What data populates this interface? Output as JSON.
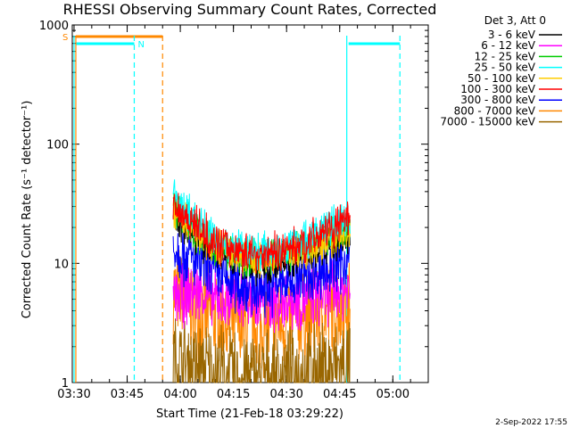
{
  "chart_data": {
    "type": "line",
    "title": "RHESSI Observing Summary Count Rates, Corrected",
    "xlabel": "Start Time (21-Feb-18 03:29:22)",
    "ylabel": "Corrected Count Rate (s⁻¹ detector⁻¹)",
    "y_scale": "log",
    "ylim": [
      1,
      1000
    ],
    "xlim": [
      "03:30",
      "05:10"
    ],
    "x_ticks": [
      "03:30",
      "03:45",
      "04:00",
      "04:15",
      "04:30",
      "04:45",
      "05:00"
    ],
    "y_ticks": [
      "1",
      "10",
      "100",
      "1000"
    ],
    "legend_title": "Det 3, Att 0",
    "legend_position": "top-right, outside plot",
    "series": [
      {
        "name": "3 - 6 keV",
        "color": "#000000",
        "x": [
          "03:58",
          "04:05",
          "04:10",
          "04:15",
          "04:20",
          "04:25",
          "04:30",
          "04:35",
          "04:40",
          "04:45",
          "04:48"
        ],
        "values": [
          25,
          16,
          13,
          11,
          10,
          9,
          11,
          12,
          14,
          16,
          18
        ]
      },
      {
        "name": "6 - 12 keV",
        "color": "#ff00ff",
        "x": [
          "03:58",
          "04:05",
          "04:10",
          "04:15",
          "04:20",
          "04:25",
          "04:30",
          "04:35",
          "04:40",
          "04:45",
          "04:48"
        ],
        "values": [
          5,
          6,
          5,
          5,
          5,
          4.5,
          5,
          5,
          5.5,
          6,
          6
        ]
      },
      {
        "name": "12 - 25 keV",
        "color": "#00cc00",
        "x": [
          "03:58",
          "04:05",
          "04:10",
          "04:15",
          "04:20",
          "04:25",
          "04:30",
          "04:35",
          "04:40",
          "04:45",
          "04:48"
        ],
        "values": [
          30,
          18,
          14,
          12,
          11,
          11,
          12,
          14,
          16,
          18,
          20
        ]
      },
      {
        "name": "25 - 50 keV",
        "color": "#00ffff",
        "x": [
          "03:58",
          "04:05",
          "04:10",
          "04:15",
          "04:20",
          "04:25",
          "04:30",
          "04:35",
          "04:40",
          "04:45",
          "04:48"
        ],
        "values": [
          35,
          22,
          16,
          14,
          13,
          13,
          14,
          16,
          19,
          22,
          24
        ]
      },
      {
        "name": "50 - 100 keV",
        "color": "#ffcc00",
        "x": [
          "03:58",
          "04:05",
          "04:10",
          "04:15",
          "04:20",
          "04:25",
          "04:30",
          "04:35",
          "04:40",
          "04:45",
          "04:48"
        ],
        "values": [
          28,
          18,
          14,
          12,
          11,
          11,
          12,
          13,
          15,
          17,
          19
        ]
      },
      {
        "name": "100 - 300 keV",
        "color": "#ff0000",
        "x": [
          "03:58",
          "04:05",
          "04:10",
          "04:15",
          "04:20",
          "04:25",
          "04:30",
          "04:35",
          "04:40",
          "04:45",
          "04:48"
        ],
        "values": [
          32,
          20,
          15,
          13,
          12,
          12,
          13,
          15,
          18,
          21,
          23
        ]
      },
      {
        "name": "300 - 800 keV",
        "color": "#0000ff",
        "x": [
          "03:58",
          "04:05",
          "04:10",
          "04:15",
          "04:20",
          "04:25",
          "04:30",
          "04:35",
          "04:40",
          "04:45",
          "04:48"
        ],
        "values": [
          14,
          10,
          8,
          7,
          6.5,
          6.5,
          7,
          8,
          9,
          10,
          11
        ]
      },
      {
        "name": "800 - 7000 keV",
        "color": "#ff8800",
        "x": [
          "03:58",
          "04:05",
          "04:10",
          "04:15",
          "04:20",
          "04:25",
          "04:30",
          "04:35",
          "04:40",
          "04:45",
          "04:48"
        ],
        "values": [
          6,
          4,
          3.5,
          3,
          3,
          3,
          3.2,
          3.5,
          3.8,
          4.2,
          4.5
        ]
      },
      {
        "name": "7000 - 15000 keV",
        "color": "#996600",
        "x": [
          "03:58",
          "04:05",
          "04:10",
          "04:15",
          "04:20",
          "04:25",
          "04:30",
          "04:35",
          "04:40",
          "04:45",
          "04:48"
        ],
        "values": [
          1.5,
          1.3,
          1.2,
          1.1,
          1.1,
          1.1,
          1.1,
          1.2,
          1.2,
          1.3,
          1.3
        ]
      }
    ],
    "flags": [
      {
        "label": "S",
        "color": "#ff8800",
        "start": "03:30",
        "end": "03:55"
      },
      {
        "label": "N",
        "color": "#00ffff",
        "start": "03:30",
        "end": "03:47"
      },
      {
        "label": "",
        "color": "#00ffff",
        "start": "04:47",
        "end": "05:02"
      }
    ],
    "markers": [
      {
        "time": "03:30",
        "color": "#ff8800",
        "style": "solid"
      },
      {
        "time": "03:30",
        "color": "#00ffff",
        "style": "solid"
      },
      {
        "time": "03:47",
        "color": "#00ffff",
        "style": "dashed"
      },
      {
        "time": "03:55",
        "color": "#ff8800",
        "style": "dashed"
      },
      {
        "time": "04:47",
        "color": "#00ffff",
        "style": "solid"
      },
      {
        "time": "05:02",
        "color": "#00ffff",
        "style": "dashed"
      }
    ],
    "grid": false
  },
  "footer_date": "2-Sep-2022 17:55"
}
